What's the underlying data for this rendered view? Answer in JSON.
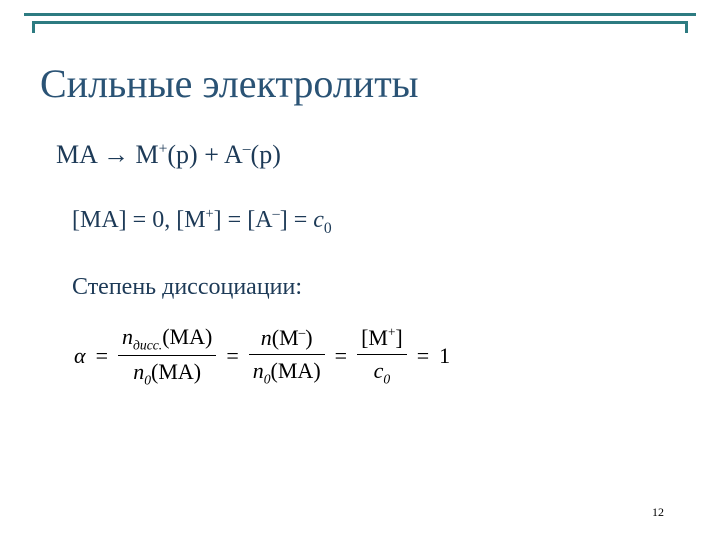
{
  "colors": {
    "accent": "#2d7b81",
    "title": "#2a5375",
    "body": "#1d3a57",
    "formula": "#000000"
  },
  "title": "Сильные электролиты",
  "eq1": {
    "lhs": "MA",
    "arrow": " → ",
    "rhs1_base": "M",
    "rhs1_sup": "+",
    "rhs1_tail": "(р)",
    "plus": " + ",
    "rhs2_base": "A",
    "rhs2_sup": "–",
    "rhs2_tail": "(р)"
  },
  "eq2": {
    "a": "[MA] = 0, ",
    "b_base": "[M",
    "b_sup": "+",
    "b_tail": "] = ",
    "c_base": "[A",
    "c_sup": "–",
    "c_tail": "] = ",
    "d_var": "c",
    "d_sub": "0"
  },
  "label_degree": "Степень диссоциации:",
  "formula": {
    "alpha": "α",
    "eq": "=",
    "f1_num_a": "n",
    "f1_num_sub": "дисс.",
    "f1_num_b": "(MA)",
    "f1_den_a": "n",
    "f1_den_sub": "0",
    "f1_den_b": "(MA)",
    "f2_num_a": "n",
    "f2_num_b": "(M",
    "f2_num_sup": "–",
    "f2_num_c": ")",
    "f2_den_a": "n",
    "f2_den_sub": "0",
    "f2_den_b": "(MA)",
    "f3_num_a": "[M",
    "f3_num_sup": "+",
    "f3_num_b": "]",
    "f3_den_a": "c",
    "f3_den_sub": "0",
    "result": "1"
  },
  "page_number": "12"
}
